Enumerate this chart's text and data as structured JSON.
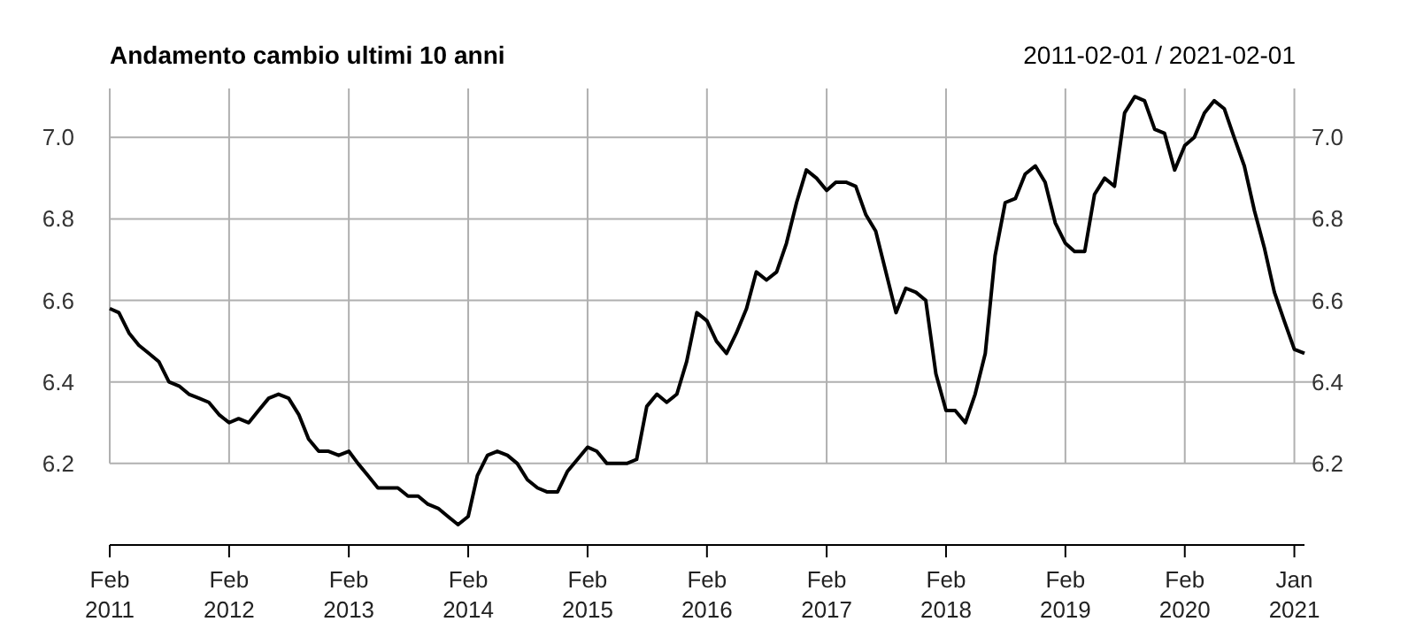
{
  "chart_data": {
    "type": "line",
    "title": "Andamento cambio ultimi 10 anni",
    "subtitle": "2011-02-01 / 2021-02-01",
    "x": [
      "2011-02",
      "2011-03",
      "2011-04",
      "2011-05",
      "2011-06",
      "2011-07",
      "2011-08",
      "2011-09",
      "2011-10",
      "2011-11",
      "2011-12",
      "2012-01",
      "2012-02",
      "2012-03",
      "2012-04",
      "2012-05",
      "2012-06",
      "2012-07",
      "2012-08",
      "2012-09",
      "2012-10",
      "2012-11",
      "2012-12",
      "2013-01",
      "2013-02",
      "2013-03",
      "2013-04",
      "2013-05",
      "2013-06",
      "2013-07",
      "2013-08",
      "2013-09",
      "2013-10",
      "2013-11",
      "2013-12",
      "2014-01",
      "2014-02",
      "2014-03",
      "2014-04",
      "2014-05",
      "2014-06",
      "2014-07",
      "2014-08",
      "2014-09",
      "2014-10",
      "2014-11",
      "2014-12",
      "2015-01",
      "2015-02",
      "2015-03",
      "2015-04",
      "2015-05",
      "2015-06",
      "2015-07",
      "2015-08",
      "2015-09",
      "2015-10",
      "2015-11",
      "2015-12",
      "2016-01",
      "2016-02",
      "2016-03",
      "2016-04",
      "2016-05",
      "2016-06",
      "2016-07",
      "2016-08",
      "2016-09",
      "2016-10",
      "2016-11",
      "2016-12",
      "2017-01",
      "2017-02",
      "2017-03",
      "2017-04",
      "2017-05",
      "2017-06",
      "2017-07",
      "2017-08",
      "2017-09",
      "2017-10",
      "2017-11",
      "2017-12",
      "2018-01",
      "2018-02",
      "2018-03",
      "2018-04",
      "2018-05",
      "2018-06",
      "2018-07",
      "2018-08",
      "2018-09",
      "2018-10",
      "2018-11",
      "2018-12",
      "2019-01",
      "2019-02",
      "2019-03",
      "2019-04",
      "2019-05",
      "2019-06",
      "2019-07",
      "2019-08",
      "2019-09",
      "2019-10",
      "2019-11",
      "2019-12",
      "2020-01",
      "2020-02",
      "2020-03",
      "2020-04",
      "2020-05",
      "2020-06",
      "2020-07",
      "2020-08",
      "2020-09",
      "2020-10",
      "2020-11",
      "2020-12",
      "2021-01",
      "2021-02"
    ],
    "series": [
      {
        "color": "#000000",
        "values": [
          6.58,
          6.57,
          6.52,
          6.49,
          6.47,
          6.45,
          6.4,
          6.39,
          6.37,
          6.36,
          6.35,
          6.32,
          6.3,
          6.31,
          6.3,
          6.33,
          6.36,
          6.37,
          6.36,
          6.32,
          6.26,
          6.23,
          6.23,
          6.22,
          6.23,
          6.2,
          6.17,
          6.14,
          6.14,
          6.14,
          6.12,
          6.12,
          6.1,
          6.09,
          6.07,
          6.05,
          6.07,
          6.17,
          6.22,
          6.23,
          6.22,
          6.2,
          6.16,
          6.14,
          6.13,
          6.13,
          6.18,
          6.21,
          6.24,
          6.23,
          6.2,
          6.2,
          6.2,
          6.21,
          6.34,
          6.37,
          6.35,
          6.37,
          6.45,
          6.57,
          6.55,
          6.5,
          6.47,
          6.52,
          6.58,
          6.67,
          6.65,
          6.67,
          6.74,
          6.84,
          6.92,
          6.9,
          6.87,
          6.89,
          6.89,
          6.88,
          6.81,
          6.77,
          6.67,
          6.57,
          6.63,
          6.62,
          6.6,
          6.42,
          6.33,
          6.33,
          6.3,
          6.37,
          6.47,
          6.71,
          6.84,
          6.85,
          6.91,
          6.93,
          6.89,
          6.79,
          6.74,
          6.72,
          6.72,
          6.86,
          6.9,
          6.88,
          7.06,
          7.1,
          7.09,
          7.02,
          7.01,
          6.92,
          6.98,
          7.0,
          7.06,
          7.09,
          7.07,
          7.0,
          6.93,
          6.82,
          6.73,
          6.62,
          6.55,
          6.48,
          6.47
        ]
      }
    ],
    "xlim": [
      "2011-02",
      "2021-02"
    ],
    "xticks": [
      {
        "value": "2011-02",
        "label": "Feb 2011"
      },
      {
        "value": "2012-02",
        "label": "Feb 2012"
      },
      {
        "value": "2013-02",
        "label": "Feb 2013"
      },
      {
        "value": "2014-02",
        "label": "Feb 2014"
      },
      {
        "value": "2015-02",
        "label": "Feb 2015"
      },
      {
        "value": "2016-02",
        "label": "Feb 2016"
      },
      {
        "value": "2017-02",
        "label": "Feb 2017"
      },
      {
        "value": "2018-02",
        "label": "Feb 2018"
      },
      {
        "value": "2019-02",
        "label": "Feb 2019"
      },
      {
        "value": "2020-02",
        "label": "Feb 2020"
      },
      {
        "value": "2021-01",
        "label": "Jan 2021"
      }
    ],
    "ylim": [
      6.0,
      7.12
    ],
    "yticks": [
      {
        "value": 6.2,
        "label": "6.2"
      },
      {
        "value": 6.4,
        "label": "6.4"
      },
      {
        "value": 6.6,
        "label": "6.6"
      },
      {
        "value": 6.8,
        "label": "6.8"
      },
      {
        "value": 7.0,
        "label": "7.0"
      }
    ],
    "y2lim": [
      6.0,
      7.12
    ],
    "y2ticks": [
      {
        "value": 6.2,
        "label": "6.2"
      },
      {
        "value": 6.4,
        "label": "6.4"
      },
      {
        "value": 6.6,
        "label": "6.6"
      },
      {
        "value": 6.8,
        "label": "6.8"
      },
      {
        "value": 7.0,
        "label": "7.0"
      }
    ],
    "grid": true
  }
}
